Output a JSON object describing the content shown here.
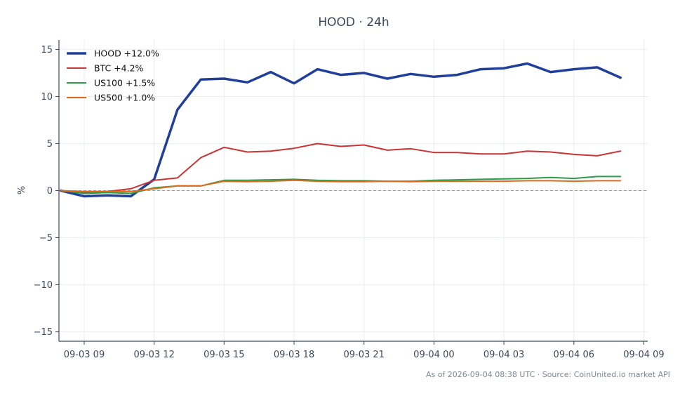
{
  "chart_data": {
    "type": "line",
    "title": "HOOD · 24h",
    "xlabel": "",
    "ylabel": "%",
    "ylim": [
      -16,
      16
    ],
    "xlim": [
      "2026-09-03 07:55",
      "2026-09-04 09:10"
    ],
    "x_ticks": [
      {
        "value": "2026-09-03 09:00",
        "label": "09-03 09"
      },
      {
        "value": "2026-09-03 12:00",
        "label": "09-03 12"
      },
      {
        "value": "2026-09-03 15:00",
        "label": "09-03 15"
      },
      {
        "value": "2026-09-03 18:00",
        "label": "09-03 18"
      },
      {
        "value": "2026-09-03 21:00",
        "label": "09-03 21"
      },
      {
        "value": "2026-09-04 00:00",
        "label": "09-04 00"
      },
      {
        "value": "2026-09-04 03:00",
        "label": "09-04 03"
      },
      {
        "value": "2026-09-04 06:00",
        "label": "09-04 06"
      },
      {
        "value": "2026-09-04 09:00",
        "label": "09-04 09"
      }
    ],
    "y_ticks": [
      {
        "value": 15,
        "label": "15"
      },
      {
        "value": 10,
        "label": "10"
      },
      {
        "value": 5,
        "label": "5"
      },
      {
        "value": 0,
        "label": "0"
      },
      {
        "value": -5,
        "label": "−5"
      },
      {
        "value": -10,
        "label": "−10"
      },
      {
        "value": -15,
        "label": "−15"
      }
    ],
    "grid": true,
    "zero_line": true,
    "legend_position": "top-left",
    "x": [
      "2026-09-03 08:00",
      "2026-09-03 09:00",
      "2026-09-03 10:00",
      "2026-09-03 11:00",
      "2026-09-03 12:00",
      "2026-09-03 13:00",
      "2026-09-03 14:00",
      "2026-09-03 15:00",
      "2026-09-03 16:00",
      "2026-09-03 17:00",
      "2026-09-03 18:00",
      "2026-09-03 19:00",
      "2026-09-03 20:00",
      "2026-09-03 21:00",
      "2026-09-03 22:00",
      "2026-09-03 23:00",
      "2026-09-04 00:00",
      "2026-09-04 01:00",
      "2026-09-04 02:00",
      "2026-09-04 03:00",
      "2026-09-04 04:00",
      "2026-09-04 05:00",
      "2026-09-04 06:00",
      "2026-09-04 07:00",
      "2026-09-04 08:00"
    ],
    "series": [
      {
        "name": "HOOD +12.0%",
        "color": "#1f3f9a",
        "width": 3.5,
        "values": [
          0.0,
          -0.6,
          -0.5,
          -0.6,
          1.2,
          8.6,
          11.8,
          11.9,
          11.5,
          12.6,
          11.4,
          12.9,
          12.3,
          12.5,
          11.9,
          12.4,
          12.1,
          12.3,
          12.9,
          13.0,
          13.5,
          12.6,
          12.9,
          13.1,
          12.0
        ]
      },
      {
        "name": "BTC +4.2%",
        "color": "#cc3333",
        "width": 2,
        "values": [
          0.0,
          -0.2,
          -0.1,
          0.2,
          1.1,
          1.35,
          3.5,
          4.6,
          4.1,
          4.2,
          4.5,
          5.0,
          4.7,
          4.85,
          4.3,
          4.45,
          4.05,
          4.05,
          3.9,
          3.9,
          4.2,
          4.1,
          3.85,
          3.7,
          4.2
        ]
      },
      {
        "name": "US100 +1.5%",
        "color": "#2a9d48",
        "width": 2,
        "values": [
          0.0,
          -0.3,
          -0.2,
          -0.3,
          0.3,
          0.5,
          0.5,
          1.1,
          1.1,
          1.15,
          1.2,
          1.1,
          1.05,
          1.05,
          1.0,
          1.0,
          1.1,
          1.15,
          1.2,
          1.25,
          1.3,
          1.4,
          1.3,
          1.5,
          1.5
        ]
      },
      {
        "name": "US500 +1.0%",
        "color": "#e06a1c",
        "width": 2,
        "values": [
          0.0,
          -0.1,
          -0.1,
          -0.1,
          0.2,
          0.5,
          0.5,
          1.0,
          0.95,
          1.0,
          1.1,
          1.0,
          0.95,
          0.95,
          1.0,
          0.95,
          1.0,
          1.0,
          1.0,
          1.0,
          1.05,
          1.05,
          1.0,
          1.05,
          1.05
        ]
      }
    ]
  },
  "footer": "As of 2026-09-04 08:38 UTC · Source: CoinUnited.io market API"
}
